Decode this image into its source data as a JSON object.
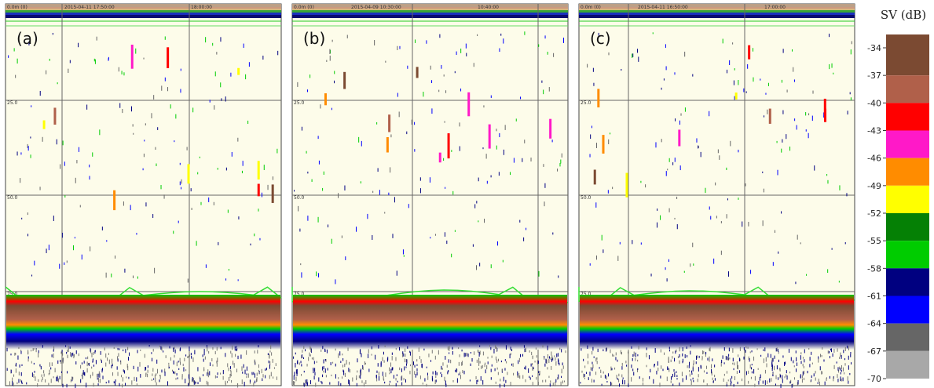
{
  "panels": [
    {
      "label": "(a)",
      "range_label": "0.0m (0)",
      "start_time": "2015-04-11 17:50:00",
      "end_time": "18:00:00",
      "depth_labels": [
        "25.0",
        "50.0",
        "75.0"
      ]
    },
    {
      "label": "(b)",
      "range_label": "0.0m (0)",
      "start_time": "2015-04-09 10:30:00",
      "end_time": "10:40:00",
      "depth_labels": [
        "25.0",
        "50.0",
        "75.0"
      ]
    },
    {
      "label": "(c)",
      "range_label": "0.0m (0)",
      "start_time": "2015-04-11 16:50:00",
      "end_time": "17:00:00",
      "depth_labels": [
        "25.0",
        "50.0",
        "75.0"
      ]
    }
  ],
  "colorbar": {
    "title": "SV (dB)",
    "ticks": [
      -34,
      -37,
      -40,
      -43,
      -46,
      -49,
      -52,
      -55,
      -58,
      -61,
      -64,
      -67,
      -70
    ],
    "colors": [
      "#7b4a32",
      "#b0604a",
      "#ff0000",
      "#ff19c8",
      "#ff8c00",
      "#ffff00",
      "#058005",
      "#00cc00",
      "#000080",
      "#0000ff",
      "#666666",
      "#a8a8a8"
    ]
  }
}
